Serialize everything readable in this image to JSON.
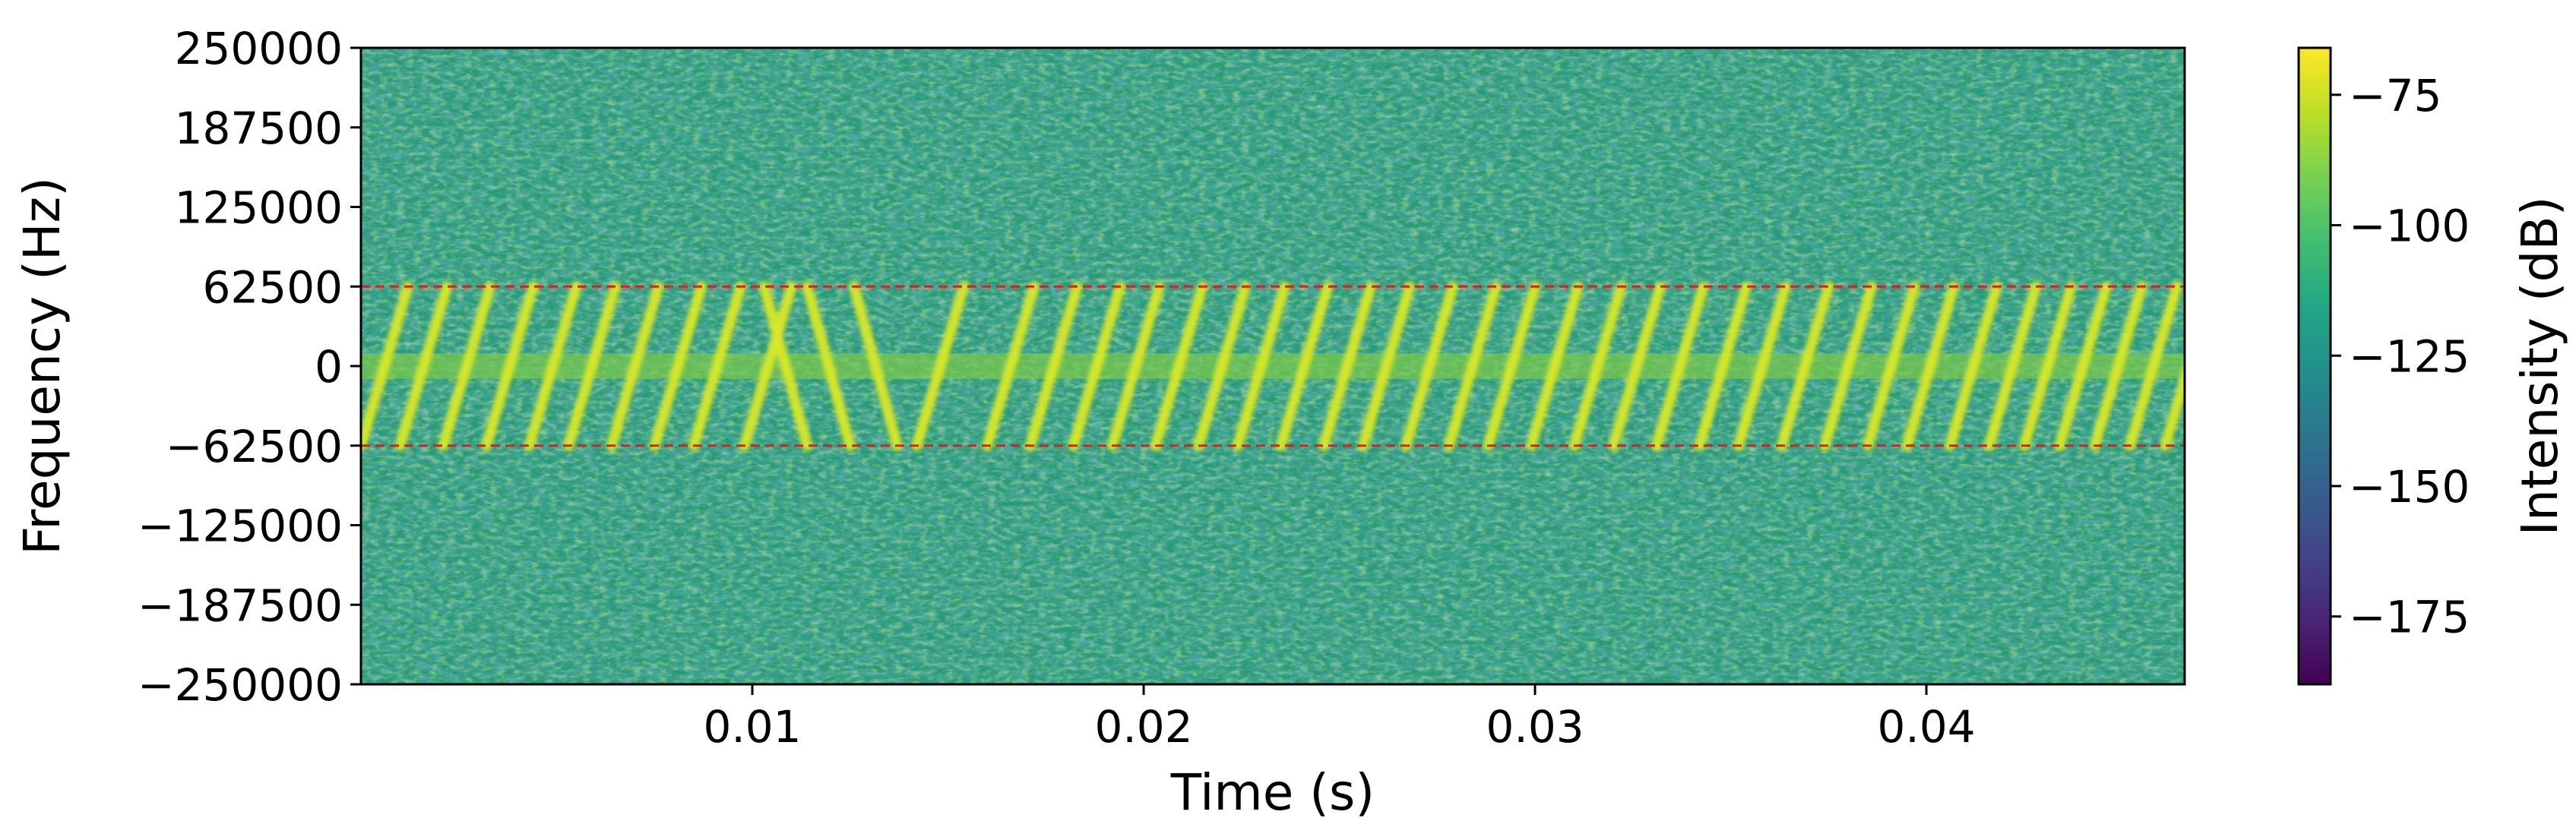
{
  "chart_data": {
    "type": "heatmap",
    "title": "",
    "xlabel": "Time (s)",
    "ylabel": "Frequency (Hz)",
    "xlim": [
      0.0,
      0.0466
    ],
    "ylim": [
      -250000,
      250000
    ],
    "x_ticks": [
      0.01,
      0.02,
      0.03,
      0.04
    ],
    "x_tick_labels": [
      "0.01",
      "0.02",
      "0.03",
      "0.04"
    ],
    "y_ticks": [
      250000,
      187500,
      125000,
      62500,
      0,
      -62500,
      -125000,
      -187500,
      -250000
    ],
    "y_tick_labels": [
      "250000",
      "187500",
      "125000",
      "62500",
      "0",
      "−62500",
      "−125000",
      "−187500",
      "−250000"
    ],
    "colormap": "viridis",
    "colorbar": {
      "label": "Intensity (dB)",
      "range": [
        -188,
        -66
      ],
      "ticks": [
        -75,
        -100,
        -125,
        -150,
        -175
      ],
      "tick_labels": [
        "−75",
        "−100",
        "−125",
        "−150",
        "−175"
      ],
      "placement": "right"
    },
    "background_intensity_db": -108,
    "signal_intensity_db": -72,
    "baseband_band_hz": [
      -10000,
      10000
    ],
    "reference_lines": {
      "frequencies_hz": [
        62500,
        -62500
      ],
      "color": "#e41a1c",
      "style": "dashed"
    },
    "chirps": {
      "bandwidth_hz": [
        -62500,
        62500
      ],
      "upchirp_start_times_s": [
        0.0,
        0.001,
        0.0021,
        0.0032,
        0.0043,
        0.0053,
        0.0064,
        0.0075,
        0.0085,
        0.0098,
        0.0142,
        0.016,
        0.0171,
        0.0182,
        0.0192,
        0.0203,
        0.0214,
        0.0224,
        0.0235,
        0.0246,
        0.0256,
        0.0267,
        0.0278,
        0.0288,
        0.0299,
        0.031,
        0.032,
        0.0331,
        0.0342,
        0.0352,
        0.0363,
        0.0374,
        0.0385,
        0.0395,
        0.0406,
        0.0416,
        0.0425,
        0.0434,
        0.0443,
        0.0452,
        0.0461
      ],
      "upchirp_duration_s": 0.0012,
      "downchirp_start_times_s": [
        0.0103,
        0.0114,
        0.0126
      ],
      "downchirp_duration_s": 0.0011
    }
  }
}
